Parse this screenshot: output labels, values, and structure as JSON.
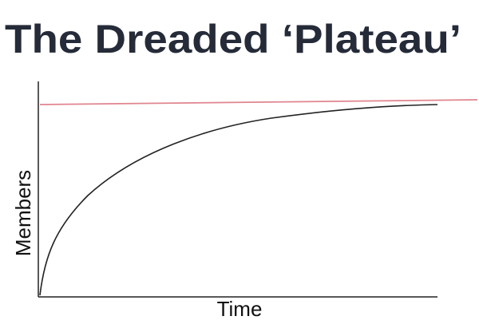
{
  "chart_data": {
    "type": "line",
    "title": "The Dreaded ‘Plateau’",
    "x_label": "Time",
    "y_label": "Members"
  }
}
